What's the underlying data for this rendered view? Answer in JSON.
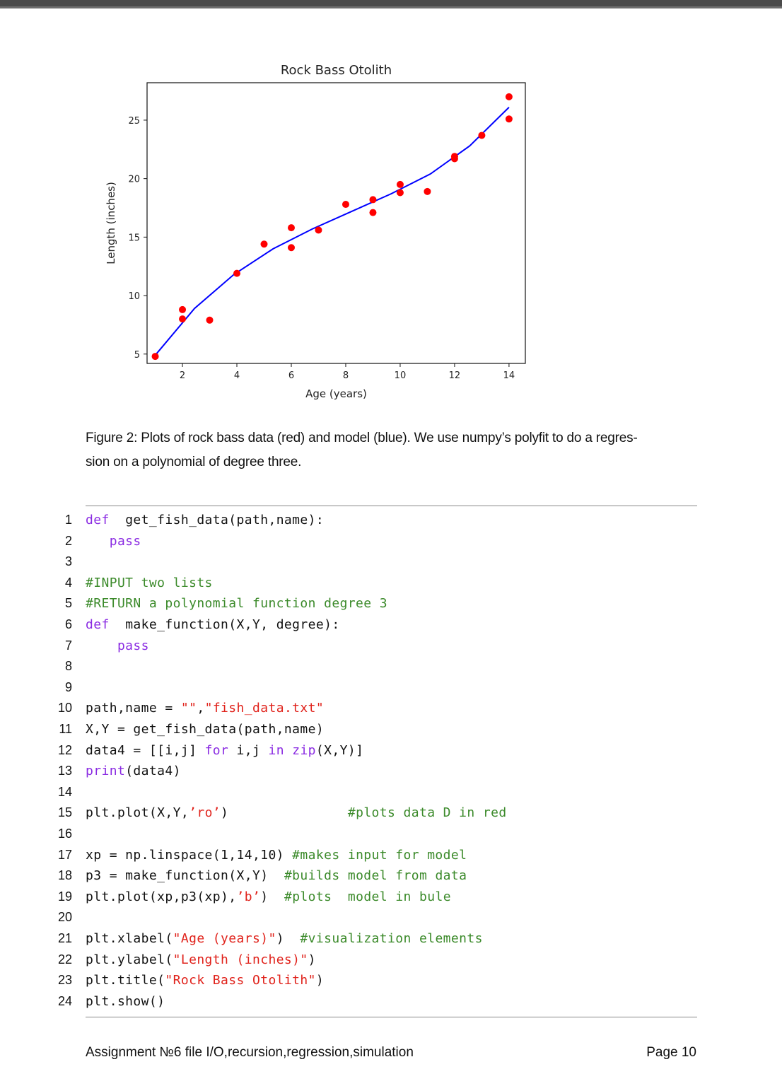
{
  "chart_data": {
    "type": "scatter",
    "title": "Rock Bass Otolith",
    "xlabel": "Age (years)",
    "ylabel": "Length (inches)",
    "xlim": [
      0.7,
      14.6
    ],
    "ylim": [
      4.2,
      28.2
    ],
    "xticks": [
      2,
      4,
      6,
      8,
      10,
      12,
      14
    ],
    "yticks": [
      5,
      10,
      15,
      20,
      25
    ],
    "grid": false,
    "series": [
      {
        "kind": "points",
        "color": "#ff0000",
        "x": [
          1,
          2,
          2,
          3,
          4,
          5,
          6,
          6,
          7,
          8,
          9,
          9,
          10,
          10,
          11,
          12,
          12,
          13,
          14,
          14
        ],
        "y": [
          4.8,
          8.0,
          8.8,
          7.9,
          11.9,
          14.4,
          15.8,
          14.1,
          15.6,
          17.8,
          18.2,
          17.1,
          19.5,
          18.8,
          18.9,
          21.9,
          21.7,
          23.7,
          27.0,
          25.1
        ]
      },
      {
        "kind": "line",
        "color": "#0000ff",
        "x": [
          1,
          2.444,
          3.889,
          5.333,
          6.778,
          8.222,
          9.667,
          11.111,
          12.556,
          14
        ],
        "y": [
          4.9,
          8.9,
          11.8,
          14.0,
          15.7,
          17.2,
          18.7,
          20.4,
          22.8,
          26.1
        ]
      }
    ]
  },
  "caption": "Figure 2: Plots of rock bass data (red) and model (blue). We use numpy’s polyfit to do a regres-sion on a polynomial of degree three.",
  "caption_line1": "Figure 2:  Plots of rock bass data (red) and model (blue).  We use numpy’s polyfit to do a regres-",
  "caption_line2": "sion on a polynomial of degree three.",
  "code_lines": [
    {
      "n": "1",
      "parts": [
        [
          "kw",
          "def"
        ],
        [
          "",
          "  get_fish_data(path,name):"
        ]
      ]
    },
    {
      "n": "2",
      "parts": [
        [
          "kw",
          "   pass"
        ]
      ]
    },
    {
      "n": "3",
      "parts": []
    },
    {
      "n": "4",
      "parts": [
        [
          "cm",
          "#INPUT two lists"
        ]
      ]
    },
    {
      "n": "5",
      "parts": [
        [
          "cm",
          "#RETURN a polynomial function degree 3"
        ]
      ]
    },
    {
      "n": "6",
      "parts": [
        [
          "kw",
          "def"
        ],
        [
          "",
          "  make_function(X,Y, degree):"
        ]
      ]
    },
    {
      "n": "7",
      "parts": [
        [
          "kw",
          "    pass"
        ]
      ]
    },
    {
      "n": "8",
      "parts": []
    },
    {
      "n": "9",
      "parts": []
    },
    {
      "n": "10",
      "parts": [
        [
          "",
          "path,name = "
        ],
        [
          "str",
          "\"\""
        ],
        [
          "",
          ","
        ],
        [
          "str",
          "\"fish_data.txt\""
        ]
      ]
    },
    {
      "n": "11",
      "parts": [
        [
          "",
          "X,Y = get_fish_data(path,name)"
        ]
      ]
    },
    {
      "n": "12",
      "parts": [
        [
          "",
          "data4 = [[i,j] "
        ],
        [
          "kw",
          "for"
        ],
        [
          "",
          " i,j "
        ],
        [
          "kw",
          "in"
        ],
        [
          "",
          " "
        ],
        [
          "kw",
          "zip"
        ],
        [
          "",
          "(X,Y)]"
        ]
      ]
    },
    {
      "n": "13",
      "parts": [
        [
          "kw",
          "print"
        ],
        [
          "",
          "(data4)"
        ]
      ]
    },
    {
      "n": "14",
      "parts": []
    },
    {
      "n": "15",
      "parts": [
        [
          "",
          "plt.plot(X,Y,"
        ],
        [
          "str",
          "’ro’"
        ],
        [
          "",
          ")               "
        ],
        [
          "cm",
          "#plots data D in red"
        ]
      ]
    },
    {
      "n": "16",
      "parts": []
    },
    {
      "n": "17",
      "parts": [
        [
          "",
          "xp = np.linspace(1,14,10) "
        ],
        [
          "cm",
          "#makes input for model"
        ]
      ]
    },
    {
      "n": "18",
      "parts": [
        [
          "",
          "p3 = make_function(X,Y)  "
        ],
        [
          "cm",
          "#builds model from data"
        ]
      ]
    },
    {
      "n": "19",
      "parts": [
        [
          "",
          "plt.plot(xp,p3(xp),"
        ],
        [
          "str",
          "’b’"
        ],
        [
          "",
          ")  "
        ],
        [
          "cm",
          "#plots  model in bule"
        ]
      ]
    },
    {
      "n": "20",
      "parts": []
    },
    {
      "n": "21",
      "parts": [
        [
          "",
          "plt.xlabel("
        ],
        [
          "str",
          "\"Age (years)\""
        ],
        [
          "",
          ")  "
        ],
        [
          "cm",
          "#visualization elements"
        ]
      ]
    },
    {
      "n": "22",
      "parts": [
        [
          "",
          "plt.ylabel("
        ],
        [
          "str",
          "\"Length (inches)\""
        ],
        [
          "",
          ")"
        ]
      ]
    },
    {
      "n": "23",
      "parts": [
        [
          "",
          "plt.title("
        ],
        [
          "str",
          "\"Rock Bass Otolith\""
        ],
        [
          "",
          ")"
        ]
      ]
    },
    {
      "n": "24",
      "parts": [
        [
          "",
          "plt.show()"
        ]
      ]
    }
  ],
  "footer": {
    "left": "Assignment №6  file I/O,recursion,regression,simulation",
    "right": "Page 10"
  }
}
